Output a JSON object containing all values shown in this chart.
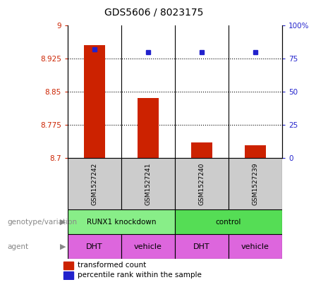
{
  "title": "GDS5606 / 8023175",
  "samples": [
    "GSM1527242",
    "GSM1527241",
    "GSM1527240",
    "GSM1527239"
  ],
  "transformed_counts": [
    8.955,
    8.835,
    8.735,
    8.728
  ],
  "percentile_ranks": [
    82,
    80,
    80,
    80
  ],
  "ylim_left": [
    8.7,
    9.0
  ],
  "ylim_right": [
    0,
    100
  ],
  "yticks_left": [
    8.7,
    8.775,
    8.85,
    8.925,
    9.0
  ],
  "ytick_labels_left": [
    "8.7",
    "8.775",
    "8.85",
    "8.925",
    "9"
  ],
  "yticks_right": [
    0,
    25,
    50,
    75,
    100
  ],
  "ytick_labels_right": [
    "0",
    "25",
    "50",
    "75",
    "100%"
  ],
  "dotted_grid_yticks": [
    8.775,
    8.85,
    8.925
  ],
  "bar_color": "#cc2200",
  "dot_color": "#2222cc",
  "bar_bottom": 8.7,
  "genotype_groups": [
    {
      "label": "RUNX1 knockdown",
      "cols": [
        0,
        1
      ],
      "color": "#88ee88"
    },
    {
      "label": "control",
      "cols": [
        2,
        3
      ],
      "color": "#55dd55"
    }
  ],
  "agent_labels": [
    "DHT",
    "vehicle",
    "DHT",
    "vehicle"
  ],
  "agent_color": "#dd66dd",
  "legend_red_label": "transformed count",
  "legend_blue_label": "percentile rank within the sample",
  "genotype_label": "genotype/variation",
  "agent_label": "agent",
  "sample_bg_color": "#cccccc",
  "left_label_color": "#888888",
  "arrow_char": "▶"
}
